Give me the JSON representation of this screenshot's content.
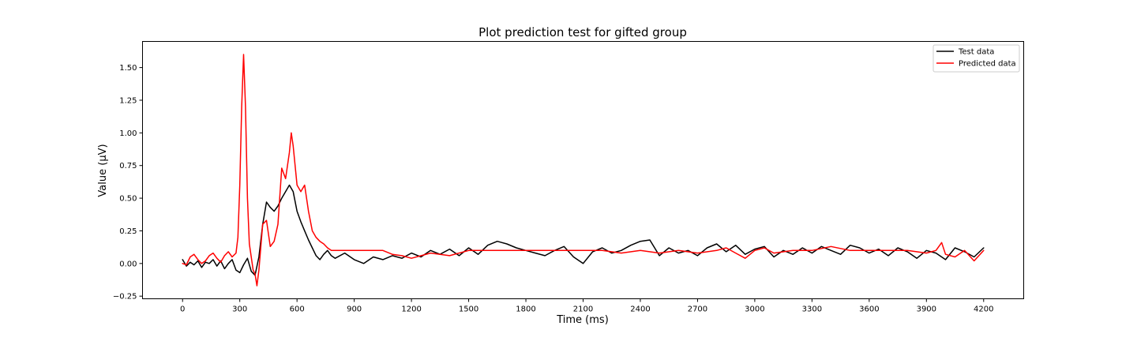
{
  "chart_data": {
    "type": "line",
    "title": "Plot prediction test for gifted group",
    "xlabel": "Time (ms)",
    "ylabel": "Value (µV)",
    "xlim": [
      -210,
      4410
    ],
    "ylim": [
      -0.27,
      1.7
    ],
    "x_ticks": [
      0,
      300,
      600,
      900,
      1200,
      1500,
      1800,
      2100,
      2400,
      2700,
      3000,
      3300,
      3600,
      3900,
      4200
    ],
    "x_tick_labels": [
      "0",
      "300",
      "600",
      "900",
      "1200",
      "1500",
      "1800",
      "2100",
      "2400",
      "2700",
      "3000",
      "3300",
      "3600",
      "3900",
      "4200"
    ],
    "y_ticks": [
      -0.25,
      0.0,
      0.25,
      0.5,
      0.75,
      1.0,
      1.25,
      1.5
    ],
    "y_tick_labels": [
      "−0.25",
      "0.00",
      "0.25",
      "0.50",
      "0.75",
      "1.00",
      "1.25",
      "1.50"
    ],
    "grid": false,
    "legend_position": "top-right",
    "series": [
      {
        "name": "Test data",
        "color": "#000000",
        "x": [
          0,
          20,
          40,
          60,
          80,
          100,
          120,
          140,
          160,
          180,
          200,
          220,
          240,
          260,
          280,
          300,
          320,
          340,
          360,
          380,
          400,
          420,
          440,
          460,
          480,
          500,
          520,
          540,
          560,
          580,
          600,
          620,
          640,
          660,
          680,
          700,
          720,
          740,
          760,
          780,
          800,
          850,
          900,
          950,
          1000,
          1050,
          1100,
          1150,
          1200,
          1250,
          1300,
          1350,
          1400,
          1450,
          1500,
          1550,
          1600,
          1650,
          1700,
          1750,
          1800,
          1850,
          1900,
          1950,
          2000,
          2050,
          2100,
          2150,
          2200,
          2250,
          2300,
          2350,
          2400,
          2450,
          2500,
          2550,
          2600,
          2650,
          2700,
          2750,
          2800,
          2850,
          2900,
          2950,
          3000,
          3050,
          3100,
          3150,
          3200,
          3250,
          3300,
          3350,
          3400,
          3450,
          3500,
          3550,
          3600,
          3650,
          3700,
          3750,
          3800,
          3850,
          3900,
          3950,
          4000,
          4050,
          4100,
          4150,
          4200
        ],
        "values": [
          0.03,
          -0.02,
          0.01,
          -0.01,
          0.02,
          -0.03,
          0.01,
          0.0,
          0.03,
          -0.02,
          0.02,
          -0.04,
          0.0,
          0.03,
          -0.05,
          -0.07,
          -0.01,
          0.04,
          -0.06,
          -0.09,
          0.05,
          0.3,
          0.47,
          0.43,
          0.4,
          0.44,
          0.5,
          0.55,
          0.6,
          0.55,
          0.4,
          0.32,
          0.25,
          0.18,
          0.12,
          0.06,
          0.03,
          0.07,
          0.1,
          0.06,
          0.04,
          0.08,
          0.03,
          0.0,
          0.05,
          0.03,
          0.06,
          0.04,
          0.08,
          0.05,
          0.1,
          0.07,
          0.11,
          0.06,
          0.12,
          0.07,
          0.14,
          0.17,
          0.15,
          0.12,
          0.1,
          0.08,
          0.06,
          0.1,
          0.13,
          0.05,
          0.0,
          0.09,
          0.12,
          0.08,
          0.1,
          0.14,
          0.17,
          0.18,
          0.06,
          0.12,
          0.08,
          0.1,
          0.06,
          0.12,
          0.15,
          0.09,
          0.14,
          0.07,
          0.11,
          0.13,
          0.05,
          0.1,
          0.07,
          0.12,
          0.08,
          0.13,
          0.1,
          0.07,
          0.14,
          0.12,
          0.08,
          0.11,
          0.06,
          0.12,
          0.09,
          0.04,
          0.1,
          0.08,
          0.03,
          0.12,
          0.09,
          0.05,
          0.12
        ]
      },
      {
        "name": "Predicted data",
        "color": "#ff0000",
        "x": [
          0,
          20,
          40,
          60,
          80,
          100,
          120,
          140,
          160,
          180,
          200,
          220,
          240,
          260,
          280,
          290,
          300,
          310,
          320,
          330,
          340,
          350,
          360,
          370,
          380,
          390,
          400,
          420,
          440,
          460,
          480,
          500,
          520,
          540,
          560,
          570,
          580,
          600,
          620,
          640,
          660,
          680,
          700,
          720,
          740,
          760,
          780,
          800,
          850,
          900,
          950,
          1000,
          1050,
          1100,
          1150,
          1200,
          1300,
          1400,
          1500,
          1600,
          1700,
          1800,
          1900,
          2000,
          2100,
          2200,
          2300,
          2400,
          2500,
          2600,
          2700,
          2800,
          2850,
          2900,
          2950,
          3000,
          3050,
          3100,
          3200,
          3300,
          3400,
          3500,
          3600,
          3700,
          3800,
          3900,
          3950,
          3980,
          4000,
          4050,
          4100,
          4150,
          4200
        ],
        "values": [
          0.0,
          -0.01,
          0.05,
          0.07,
          0.03,
          0.0,
          0.02,
          0.06,
          0.08,
          0.04,
          0.01,
          0.06,
          0.09,
          0.05,
          0.08,
          0.2,
          0.6,
          1.2,
          1.6,
          1.2,
          0.5,
          0.15,
          0.05,
          -0.05,
          -0.08,
          -0.17,
          -0.05,
          0.3,
          0.33,
          0.13,
          0.17,
          0.3,
          0.73,
          0.65,
          0.85,
          1.0,
          0.9,
          0.6,
          0.55,
          0.6,
          0.4,
          0.25,
          0.2,
          0.17,
          0.15,
          0.12,
          0.1,
          0.1,
          0.1,
          0.1,
          0.1,
          0.1,
          0.1,
          0.07,
          0.06,
          0.04,
          0.08,
          0.06,
          0.1,
          0.1,
          0.1,
          0.1,
          0.1,
          0.1,
          0.1,
          0.1,
          0.08,
          0.1,
          0.08,
          0.1,
          0.08,
          0.1,
          0.12,
          0.08,
          0.04,
          0.1,
          0.12,
          0.08,
          0.1,
          0.1,
          0.13,
          0.1,
          0.1,
          0.1,
          0.1,
          0.08,
          0.1,
          0.16,
          0.07,
          0.05,
          0.1,
          0.02,
          0.1
        ]
      }
    ]
  }
}
